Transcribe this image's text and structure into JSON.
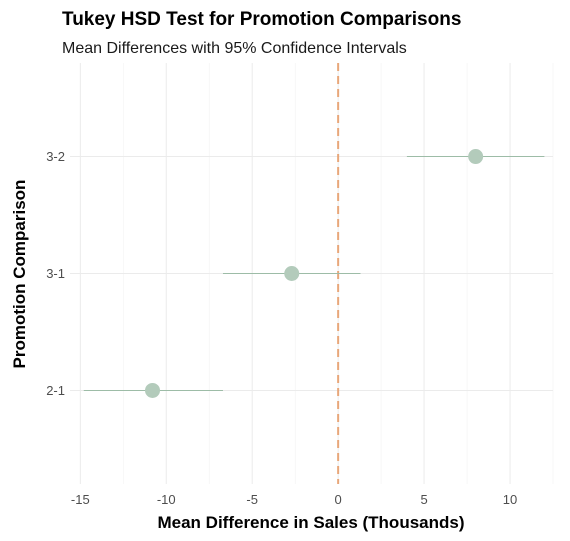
{
  "chart_data": {
    "type": "errorbar",
    "title": "Tukey HSD Test for Promotion Comparisons",
    "subtitle": "Mean Differences with 95% Confidence Intervals",
    "xlabel": "Mean Difference in Sales (Thousands)",
    "ylabel": "Promotion Comparison",
    "xlim": [
      -15.6,
      12.5
    ],
    "x_ticks": [
      -15,
      -10,
      -5,
      0,
      5,
      10
    ],
    "x_tick_labels": [
      "-15",
      "-10",
      "-5",
      "0",
      "5",
      "10"
    ],
    "reference_line": {
      "x": 0,
      "style": "dashed",
      "color": "#e8a77a"
    },
    "categories": [
      "3-2",
      "3-1",
      "2-1"
    ],
    "points": [
      {
        "label": "3-2",
        "diff": 8.0,
        "lwr": 4.0,
        "upr": 12.0
      },
      {
        "label": "3-1",
        "diff": -2.7,
        "lwr": -6.7,
        "upr": 1.3
      },
      {
        "label": "2-1",
        "diff": -10.8,
        "lwr": -14.8,
        "upr": -6.7
      }
    ],
    "point_color": "#b3cbbb",
    "line_color": "#9dbca7",
    "grid": true
  }
}
